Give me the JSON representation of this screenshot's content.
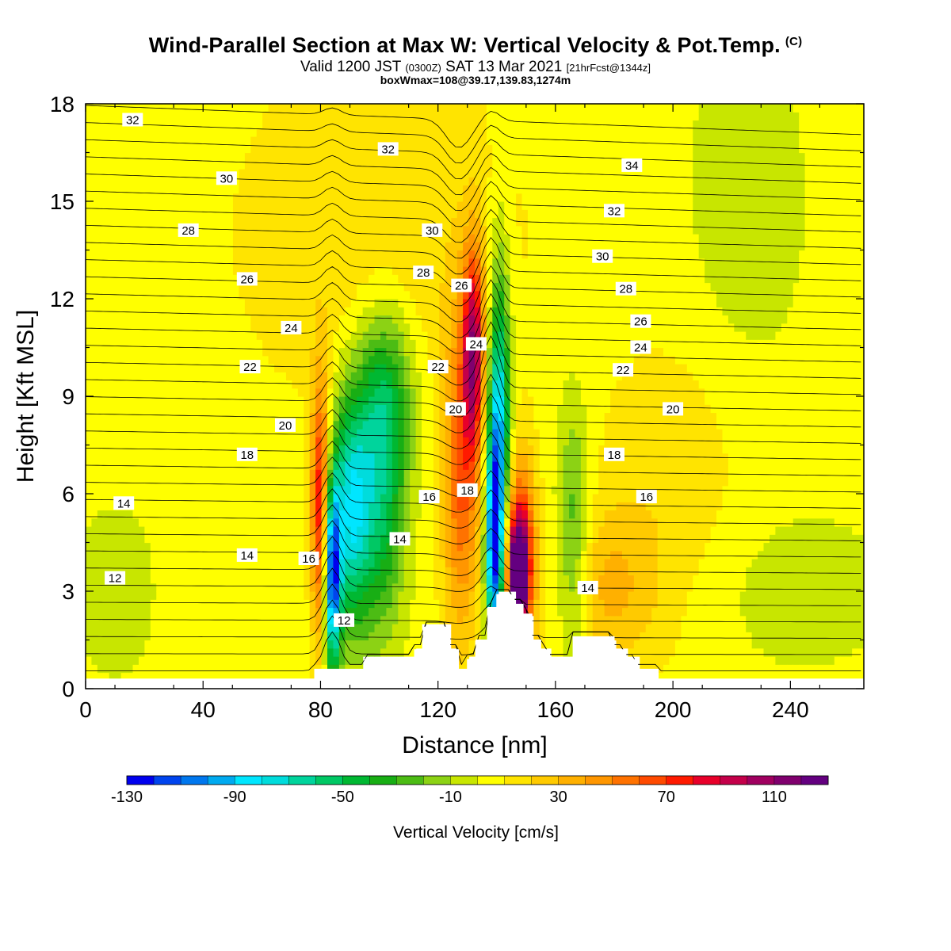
{
  "title": {
    "main": "Wind-Parallel Section at Max W: Vertical Velocity & Pot.Temp.",
    "copyright": "(C)",
    "valid_prefix": "Valid 1200 JST",
    "valid_zulu": "(0300Z)",
    "valid_date": "SAT 13 Mar 2021",
    "forecast": "[21hrFcst@1344z]",
    "box_info": "boxWmax=108@39.17,139.83,1274m"
  },
  "chart_data": {
    "type": "heatmap",
    "xlabel": "Distance [nm]",
    "ylabel": "Height [Kft MSL]",
    "xlim": [
      0,
      265
    ],
    "ylim": [
      0,
      18
    ],
    "x_ticks": [
      0,
      40,
      80,
      120,
      160,
      200,
      240
    ],
    "y_ticks": [
      0,
      3,
      6,
      9,
      12,
      15,
      18
    ],
    "colorbar": {
      "label": "Vertical Velocity [cm/s]",
      "min": -130,
      "max": 130,
      "step": 10,
      "tick_labels": [
        -130,
        -90,
        -50,
        -10,
        30,
        70,
        110
      ],
      "colors": [
        "#0000ee",
        "#0044ee",
        "#0077ee",
        "#00aaf0",
        "#00e6ff",
        "#00dcdc",
        "#00d49c",
        "#00c864",
        "#00b832",
        "#18ae14",
        "#4cbc14",
        "#8cd214",
        "#c8e600",
        "#ffff00",
        "#ffe400",
        "#ffca00",
        "#ffb000",
        "#ff9600",
        "#ff7200",
        "#ff4a00",
        "#ff1a00",
        "#e8002a",
        "#c4004a",
        "#a00060",
        "#80006e",
        "#640080"
      ]
    },
    "terrain": [
      [
        0,
        0.3
      ],
      [
        78,
        0.3
      ],
      [
        78,
        0.6
      ],
      [
        88,
        0.6
      ],
      [
        88,
        0.6
      ],
      [
        95,
        0.6
      ],
      [
        95,
        0.9
      ],
      [
        112,
        0.9
      ],
      [
        112,
        1.2
      ],
      [
        115,
        1.2
      ],
      [
        115,
        1.9
      ],
      [
        124,
        1.9
      ],
      [
        124,
        1.2
      ],
      [
        127,
        1.2
      ],
      [
        127,
        0.6
      ],
      [
        130,
        0.6
      ],
      [
        130,
        0.9
      ],
      [
        133,
        0.9
      ],
      [
        133,
        1.5
      ],
      [
        137,
        1.5
      ],
      [
        137,
        2.5
      ],
      [
        140,
        2.5
      ],
      [
        140,
        2.9
      ],
      [
        146,
        2.9
      ],
      [
        146,
        2.6
      ],
      [
        149,
        2.6
      ],
      [
        149,
        2.3
      ],
      [
        152,
        2.3
      ],
      [
        152,
        1.5
      ],
      [
        155,
        1.5
      ],
      [
        155,
        1.2
      ],
      [
        158,
        1.2
      ],
      [
        158,
        0.9
      ],
      [
        166,
        0.9
      ],
      [
        166,
        1.6
      ],
      [
        180,
        1.6
      ],
      [
        180,
        1.2
      ],
      [
        184,
        1.2
      ],
      [
        184,
        0.9
      ],
      [
        188,
        0.9
      ],
      [
        188,
        0.6
      ],
      [
        195,
        0.6
      ],
      [
        195,
        0.3
      ],
      [
        265,
        0.3
      ]
    ],
    "velocity_features": [
      {
        "x": 80,
        "y": 5.5,
        "sx": 2.2,
        "sy": 2.8,
        "v": 80
      },
      {
        "x": 84,
        "y": 3.5,
        "sx": 2.0,
        "sy": 2.0,
        "v": -120
      },
      {
        "x": 90,
        "y": 5.5,
        "sx": 4.5,
        "sy": 2.5,
        "v": -75
      },
      {
        "x": 100,
        "y": 6.0,
        "sx": 6.0,
        "sy": 3.0,
        "v": -55
      },
      {
        "x": 103,
        "y": 9.0,
        "sx": 7.0,
        "sy": 2.0,
        "v": -35
      },
      {
        "x": 128,
        "y": 6.5,
        "sx": 4.5,
        "sy": 3.5,
        "v": 55
      },
      {
        "x": 132,
        "y": 10.5,
        "sx": 2.5,
        "sy": 2.2,
        "v": 85
      },
      {
        "x": 141,
        "y": 8.0,
        "sx": 2.5,
        "sy": 3.5,
        "v": -85
      },
      {
        "x": 139,
        "y": 4.5,
        "sx": 2.0,
        "sy": 2.5,
        "v": -110
      },
      {
        "x": 148,
        "y": 4.0,
        "sx": 3.5,
        "sy": 2.0,
        "v": 95
      },
      {
        "x": 147,
        "y": 3.4,
        "sx": 2.0,
        "sy": 1.0,
        "v": 110
      },
      {
        "x": 166,
        "y": 4.5,
        "sx": 4.0,
        "sy": 3.0,
        "v": -35
      },
      {
        "x": 178,
        "y": 3.0,
        "sx": 12,
        "sy": 1.8,
        "v": 25
      },
      {
        "x": 200,
        "y": 6.0,
        "sx": 18,
        "sy": 3.5,
        "v": 13
      },
      {
        "x": 100,
        "y": 14.0,
        "sx": 35,
        "sy": 4.0,
        "v": 14
      },
      {
        "x": 225,
        "y": 15.0,
        "sx": 15,
        "sy": 4.0,
        "v": -12
      },
      {
        "x": 10,
        "y": 3.0,
        "sx": 10,
        "sy": 2.0,
        "v": -12
      },
      {
        "x": 240,
        "y": 3.0,
        "sx": 30,
        "sy": 2.0,
        "v": -10
      }
    ],
    "contour_labels": [
      {
        "text": "32",
        "x": 16,
        "y": 17.5
      },
      {
        "text": "30",
        "x": 48,
        "y": 15.7
      },
      {
        "text": "28",
        "x": 35,
        "y": 14.1
      },
      {
        "text": "26",
        "x": 55,
        "y": 12.6
      },
      {
        "text": "24",
        "x": 70,
        "y": 11.1
      },
      {
        "text": "22",
        "x": 56,
        "y": 9.9
      },
      {
        "text": "20",
        "x": 68,
        "y": 8.1
      },
      {
        "text": "18",
        "x": 55,
        "y": 7.2
      },
      {
        "text": "14",
        "x": 13,
        "y": 5.7
      },
      {
        "text": "14",
        "x": 55,
        "y": 4.1
      },
      {
        "text": "12",
        "x": 10,
        "y": 3.4
      },
      {
        "text": "16",
        "x": 76,
        "y": 4.0
      },
      {
        "text": "12",
        "x": 88,
        "y": 2.1
      },
      {
        "text": "14",
        "x": 107,
        "y": 4.6
      },
      {
        "text": "16",
        "x": 117,
        "y": 5.9
      },
      {
        "text": "18",
        "x": 130,
        "y": 6.1
      },
      {
        "text": "20",
        "x": 126,
        "y": 8.6
      },
      {
        "text": "22",
        "x": 120,
        "y": 9.9
      },
      {
        "text": "24",
        "x": 133,
        "y": 10.6
      },
      {
        "text": "26",
        "x": 128,
        "y": 12.4
      },
      {
        "text": "28",
        "x": 115,
        "y": 12.8
      },
      {
        "text": "30",
        "x": 118,
        "y": 14.1
      },
      {
        "text": "32",
        "x": 103,
        "y": 16.6
      },
      {
        "text": "34",
        "x": 186,
        "y": 16.1
      },
      {
        "text": "32",
        "x": 180,
        "y": 14.7
      },
      {
        "text": "30",
        "x": 176,
        "y": 13.3
      },
      {
        "text": "28",
        "x": 184,
        "y": 12.3
      },
      {
        "text": "26",
        "x": 189,
        "y": 11.3
      },
      {
        "text": "24",
        "x": 189,
        "y": 10.5
      },
      {
        "text": "22",
        "x": 183,
        "y": 9.8
      },
      {
        "text": "20",
        "x": 200,
        "y": 8.6
      },
      {
        "text": "18",
        "x": 180,
        "y": 7.2
      },
      {
        "text": "16",
        "x": 191,
        "y": 5.9
      },
      {
        "text": "14",
        "x": 171,
        "y": 3.1
      }
    ]
  }
}
